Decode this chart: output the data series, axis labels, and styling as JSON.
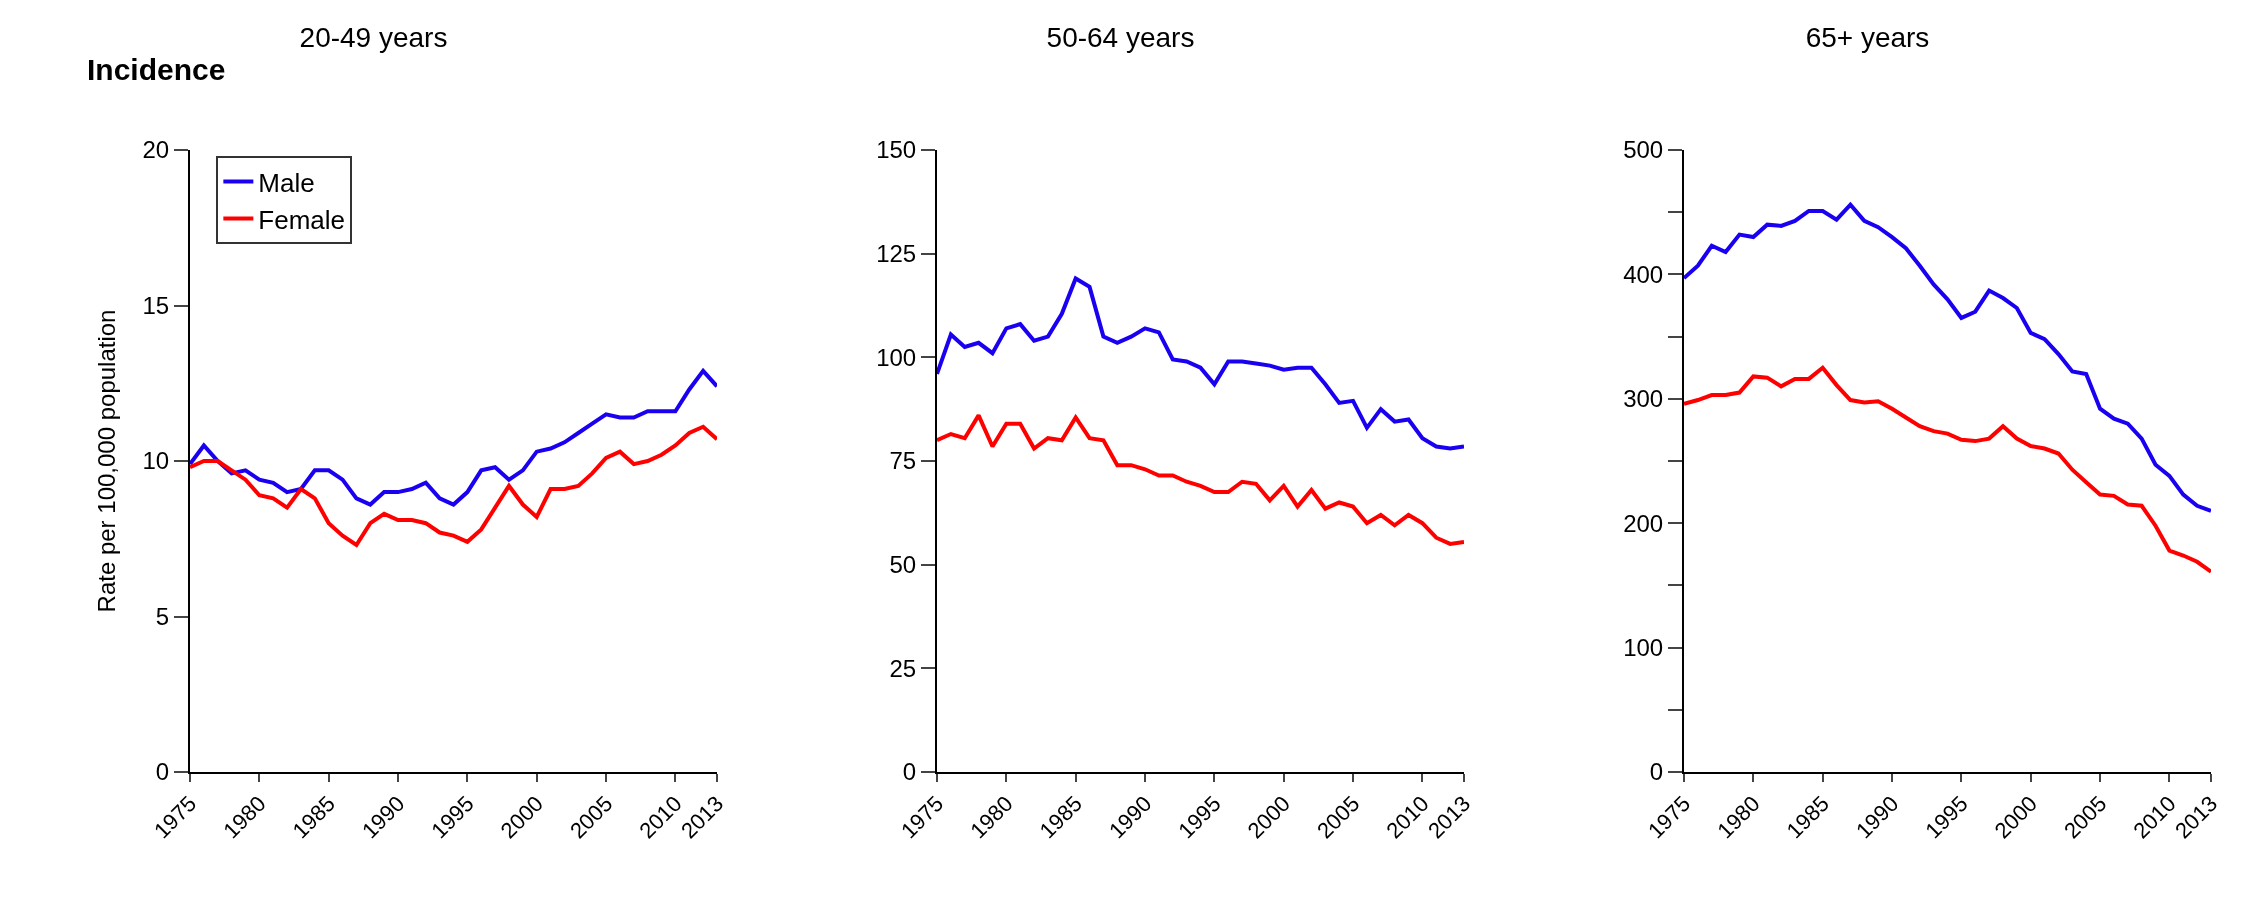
{
  "chart_data": [
    {
      "type": "line",
      "title": "20-49 years",
      "annotations": [
        "Incidence"
      ],
      "ylabel": "Rate per 100,000 population",
      "legend": "top left",
      "x": [
        1975,
        1976,
        1977,
        1978,
        1979,
        1980,
        1981,
        1982,
        1983,
        1984,
        1985,
        1986,
        1987,
        1988,
        1989,
        1990,
        1991,
        1992,
        1993,
        1994,
        1995,
        1996,
        1997,
        1998,
        1999,
        2000,
        2001,
        2002,
        2003,
        2004,
        2005,
        2006,
        2007,
        2008,
        2009,
        2010,
        2011,
        2012,
        2013
      ],
      "xlim": [
        1975,
        2013
      ],
      "xticks": [
        1975,
        1980,
        1985,
        1990,
        1995,
        2000,
        2005,
        2010,
        2013
      ],
      "ylim": [
        0,
        20
      ],
      "yticks": [
        0,
        5,
        10,
        15,
        20
      ],
      "series": [
        {
          "name": "Male",
          "color": "#1a00f0",
          "values": [
            9.9,
            10.5,
            10.0,
            9.6,
            9.7,
            9.4,
            9.3,
            9.0,
            9.1,
            9.7,
            9.7,
            9.4,
            8.8,
            8.6,
            9.0,
            9.0,
            9.1,
            9.3,
            8.8,
            8.6,
            9.0,
            9.7,
            9.8,
            9.4,
            9.7,
            10.3,
            10.4,
            10.6,
            10.9,
            11.2,
            11.5,
            11.4,
            11.4,
            11.6,
            11.6,
            11.6,
            12.3,
            12.9,
            12.4
          ]
        },
        {
          "name": "Female",
          "color": "#ff0000",
          "values": [
            9.8,
            10.0,
            10.0,
            9.7,
            9.4,
            8.9,
            8.8,
            8.5,
            9.1,
            8.8,
            8.0,
            7.6,
            7.3,
            8.0,
            8.3,
            8.1,
            8.1,
            8.0,
            7.7,
            7.6,
            7.4,
            7.8,
            8.5,
            9.2,
            8.6,
            8.2,
            9.1,
            9.1,
            9.2,
            9.6,
            10.1,
            10.3,
            9.9,
            10.0,
            10.2,
            10.5,
            10.9,
            11.1,
            10.7
          ]
        }
      ]
    },
    {
      "type": "line",
      "title": "50-64 years",
      "x": [
        1975,
        1976,
        1977,
        1978,
        1979,
        1980,
        1981,
        1982,
        1983,
        1984,
        1985,
        1986,
        1987,
        1988,
        1989,
        1990,
        1991,
        1992,
        1993,
        1994,
        1995,
        1996,
        1997,
        1998,
        1999,
        2000,
        2001,
        2002,
        2003,
        2004,
        2005,
        2006,
        2007,
        2008,
        2009,
        2010,
        2011,
        2012,
        2013
      ],
      "xlim": [
        1975,
        2013
      ],
      "xticks": [
        1975,
        1980,
        1985,
        1990,
        1995,
        2000,
        2005,
        2010,
        2013
      ],
      "ylim": [
        0,
        150
      ],
      "yticks": [
        0,
        25,
        50,
        75,
        100,
        125,
        150
      ],
      "series": [
        {
          "color": "#1a00f0",
          "values": [
            96,
            105.5,
            102.5,
            103.5,
            101,
            107,
            108,
            104,
            105,
            110.5,
            119,
            117,
            105,
            103.5,
            105,
            107,
            106,
            99.5,
            99,
            97.5,
            93.5,
            99,
            99,
            98.5,
            98,
            97,
            97.5,
            97.5,
            93.5,
            89,
            89.5,
            83,
            87.5,
            84.5,
            85,
            80.5,
            78.5,
            78,
            78.5
          ]
        },
        {
          "color": "#ff0000",
          "values": [
            80,
            81.5,
            80.5,
            86,
            78.5,
            84,
            84,
            78,
            80.5,
            80,
            85.5,
            80.5,
            80,
            74,
            74,
            73,
            71.5,
            71.5,
            70,
            69,
            67.5,
            67.5,
            70,
            69.5,
            65.5,
            69,
            64,
            68,
            63.5,
            65,
            64,
            60,
            62,
            59.5,
            62,
            60,
            56.5,
            55,
            55.5
          ]
        }
      ]
    },
    {
      "type": "line",
      "title": "65+ years",
      "x": [
        1975,
        1976,
        1977,
        1978,
        1979,
        1980,
        1981,
        1982,
        1983,
        1984,
        1985,
        1986,
        1987,
        1988,
        1989,
        1990,
        1991,
        1992,
        1993,
        1994,
        1995,
        1996,
        1997,
        1998,
        1999,
        2000,
        2001,
        2002,
        2003,
        2004,
        2005,
        2006,
        2007,
        2008,
        2009,
        2010,
        2011,
        2012,
        2013
      ],
      "xlim": [
        1975,
        2013
      ],
      "xticks": [
        1975,
        1980,
        1985,
        1990,
        1995,
        2000,
        2005,
        2010,
        2013
      ],
      "ylim": [
        0,
        500
      ],
      "yticks": [
        0,
        {
          "value": 50,
          "label": null
        },
        100,
        {
          "value": 150,
          "label": null
        },
        200,
        {
          "value": 250,
          "label": null
        },
        300,
        {
          "value": 350,
          "label": null
        },
        400,
        {
          "value": 450,
          "label": null
        },
        500
      ],
      "series": [
        {
          "color": "#1a00f0",
          "values": [
            397,
            407,
            423,
            418,
            432,
            430,
            440,
            439,
            443,
            451,
            451,
            444,
            456,
            443,
            438,
            430,
            421,
            407,
            392,
            380,
            365,
            370,
            387,
            381,
            373,
            353,
            348,
            336,
            322,
            320,
            292,
            284,
            280,
            268,
            247,
            238,
            223,
            214,
            210
          ]
        },
        {
          "color": "#ff0000",
          "values": [
            296,
            299,
            303,
            303,
            305,
            318,
            317,
            310,
            316,
            316,
            325,
            311,
            299,
            297,
            298,
            292,
            285,
            278,
            274,
            272,
            267,
            266,
            268,
            278,
            268,
            262,
            260,
            256,
            243,
            233,
            223,
            222,
            215,
            214,
            198,
            178,
            174,
            169,
            161
          ]
        }
      ]
    }
  ]
}
